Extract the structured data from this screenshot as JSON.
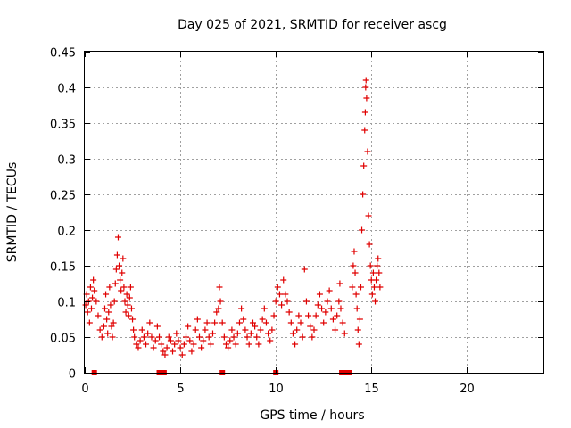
{
  "chart_data": {
    "type": "scatter",
    "title": "Day 025 of 2021, SRMTID for receiver ascg",
    "xlabel": "GPS time / hours",
    "ylabel": "SRMTID / TECUs",
    "xlim": [
      0,
      24
    ],
    "ylim": [
      0,
      0.45
    ],
    "xticks": [
      0,
      5,
      10,
      15,
      20
    ],
    "yticks": [
      0,
      0.05,
      0.1,
      0.15,
      0.2,
      0.25,
      0.3,
      0.35,
      0.4,
      0.45
    ],
    "xtick_labels": [
      "0",
      "5",
      "10",
      "15",
      "20"
    ],
    "ytick_labels": [
      "0",
      "0.05",
      "0.1",
      "0.15",
      "0.2",
      "0.25",
      "0.3",
      "0.35",
      "0.4",
      "0.45"
    ],
    "grid": true,
    "marker": "+",
    "series_color": "#e00000",
    "series": [
      {
        "name": "SRMTID",
        "points": [
          [
            0.05,
            0.095
          ],
          [
            0.1,
            0.11
          ],
          [
            0.15,
            0.085
          ],
          [
            0.2,
            0.1
          ],
          [
            0.25,
            0.07
          ],
          [
            0.3,
            0.12
          ],
          [
            0.35,
            0.09
          ],
          [
            0.4,
            0.105
          ],
          [
            0.45,
            0.13
          ],
          [
            0.5,
            0.115
          ],
          [
            0.6,
            0.1
          ],
          [
            0.7,
            0.08
          ],
          [
            0.8,
            0.06
          ],
          [
            0.9,
            0.05
          ],
          [
            1.0,
            0.065
          ],
          [
            1.05,
            0.09
          ],
          [
            1.1,
            0.11
          ],
          [
            1.15,
            0.075
          ],
          [
            1.2,
            0.055
          ],
          [
            1.25,
            0.085
          ],
          [
            1.3,
            0.12
          ],
          [
            1.35,
            0.095
          ],
          [
            1.4,
            0.065
          ],
          [
            1.45,
            0.05
          ],
          [
            1.5,
            0.07
          ],
          [
            1.55,
            0.1
          ],
          [
            1.6,
            0.125
          ],
          [
            1.65,
            0.145
          ],
          [
            1.7,
            0.165
          ],
          [
            1.75,
            0.19
          ],
          [
            1.8,
            0.15
          ],
          [
            1.85,
            0.13
          ],
          [
            1.9,
            0.115
          ],
          [
            1.95,
            0.14
          ],
          [
            2.0,
            0.16
          ],
          [
            2.05,
            0.12
          ],
          [
            2.1,
            0.1
          ],
          [
            2.15,
            0.085
          ],
          [
            2.2,
            0.11
          ],
          [
            2.25,
            0.095
          ],
          [
            2.3,
            0.08
          ],
          [
            2.35,
            0.105
          ],
          [
            2.4,
            0.12
          ],
          [
            2.45,
            0.09
          ],
          [
            2.5,
            0.075
          ],
          [
            2.55,
            0.06
          ],
          [
            2.6,
            0.05
          ],
          [
            2.7,
            0.04
          ],
          [
            2.8,
            0.035
          ],
          [
            2.9,
            0.045
          ],
          [
            3.0,
            0.06
          ],
          [
            3.1,
            0.05
          ],
          [
            3.2,
            0.04
          ],
          [
            3.3,
            0.055
          ],
          [
            3.4,
            0.07
          ],
          [
            3.5,
            0.05
          ],
          [
            3.6,
            0.035
          ],
          [
            3.7,
            0.045
          ],
          [
            3.8,
            0.065
          ],
          [
            3.9,
            0.05
          ],
          [
            4.0,
            0.04
          ],
          [
            4.1,
            0.03
          ],
          [
            4.2,
            0.025
          ],
          [
            4.3,
            0.035
          ],
          [
            4.4,
            0.05
          ],
          [
            4.5,
            0.045
          ],
          [
            4.6,
            0.03
          ],
          [
            4.7,
            0.04
          ],
          [
            4.8,
            0.055
          ],
          [
            4.9,
            0.045
          ],
          [
            5.0,
            0.035
          ],
          [
            5.1,
            0.025
          ],
          [
            5.2,
            0.04
          ],
          [
            5.3,
            0.05
          ],
          [
            5.4,
            0.065
          ],
          [
            5.5,
            0.045
          ],
          [
            5.6,
            0.03
          ],
          [
            5.7,
            0.04
          ],
          [
            5.8,
            0.06
          ],
          [
            5.9,
            0.075
          ],
          [
            6.0,
            0.05
          ],
          [
            6.1,
            0.035
          ],
          [
            6.2,
            0.045
          ],
          [
            6.3,
            0.06
          ],
          [
            6.4,
            0.07
          ],
          [
            6.5,
            0.05
          ],
          [
            6.6,
            0.04
          ],
          [
            6.7,
            0.055
          ],
          [
            6.8,
            0.07
          ],
          [
            6.9,
            0.085
          ],
          [
            7.0,
            0.09
          ],
          [
            7.05,
            0.12
          ],
          [
            7.1,
            0.1
          ],
          [
            7.2,
            0.07
          ],
          [
            7.3,
            0.05
          ],
          [
            7.4,
            0.04
          ],
          [
            7.5,
            0.035
          ],
          [
            7.6,
            0.045
          ],
          [
            7.7,
            0.06
          ],
          [
            7.8,
            0.05
          ],
          [
            7.9,
            0.04
          ],
          [
            8.0,
            0.055
          ],
          [
            8.1,
            0.07
          ],
          [
            8.2,
            0.09
          ],
          [
            8.3,
            0.075
          ],
          [
            8.4,
            0.06
          ],
          [
            8.5,
            0.05
          ],
          [
            8.6,
            0.04
          ],
          [
            8.7,
            0.055
          ],
          [
            8.8,
            0.07
          ],
          [
            8.9,
            0.065
          ],
          [
            9.0,
            0.05
          ],
          [
            9.1,
            0.04
          ],
          [
            9.2,
            0.06
          ],
          [
            9.3,
            0.075
          ],
          [
            9.4,
            0.09
          ],
          [
            9.5,
            0.07
          ],
          [
            9.6,
            0.055
          ],
          [
            9.7,
            0.045
          ],
          [
            9.8,
            0.06
          ],
          [
            9.9,
            0.08
          ],
          [
            10.0,
            0.1
          ],
          [
            10.1,
            0.12
          ],
          [
            10.2,
            0.11
          ],
          [
            10.3,
            0.095
          ],
          [
            10.4,
            0.13
          ],
          [
            10.5,
            0.11
          ],
          [
            10.6,
            0.1
          ],
          [
            10.7,
            0.085
          ],
          [
            10.8,
            0.07
          ],
          [
            10.9,
            0.055
          ],
          [
            11.0,
            0.04
          ],
          [
            11.1,
            0.06
          ],
          [
            11.2,
            0.08
          ],
          [
            11.3,
            0.07
          ],
          [
            11.4,
            0.05
          ],
          [
            11.5,
            0.145
          ],
          [
            11.6,
            0.1
          ],
          [
            11.7,
            0.08
          ],
          [
            11.8,
            0.065
          ],
          [
            11.9,
            0.05
          ],
          [
            12.0,
            0.06
          ],
          [
            12.1,
            0.08
          ],
          [
            12.2,
            0.095
          ],
          [
            12.3,
            0.11
          ],
          [
            12.4,
            0.09
          ],
          [
            12.5,
            0.07
          ],
          [
            12.6,
            0.085
          ],
          [
            12.7,
            0.1
          ],
          [
            12.8,
            0.115
          ],
          [
            12.9,
            0.09
          ],
          [
            13.0,
            0.075
          ],
          [
            13.1,
            0.06
          ],
          [
            13.2,
            0.08
          ],
          [
            13.3,
            0.1
          ],
          [
            13.35,
            0.125
          ],
          [
            13.4,
            0.09
          ],
          [
            13.5,
            0.07
          ],
          [
            13.6,
            0.055
          ],
          [
            14.0,
            0.12
          ],
          [
            14.05,
            0.15
          ],
          [
            14.1,
            0.17
          ],
          [
            14.15,
            0.14
          ],
          [
            14.2,
            0.11
          ],
          [
            14.25,
            0.09
          ],
          [
            14.3,
            0.06
          ],
          [
            14.35,
            0.04
          ],
          [
            14.4,
            0.075
          ],
          [
            14.45,
            0.12
          ],
          [
            14.5,
            0.2
          ],
          [
            14.55,
            0.25
          ],
          [
            14.6,
            0.29
          ],
          [
            14.65,
            0.34
          ],
          [
            14.68,
            0.365
          ],
          [
            14.7,
            0.4
          ],
          [
            14.72,
            0.41
          ],
          [
            14.75,
            0.385
          ],
          [
            14.8,
            0.31
          ],
          [
            14.85,
            0.22
          ],
          [
            14.9,
            0.18
          ],
          [
            14.95,
            0.15
          ],
          [
            15.0,
            0.13
          ],
          [
            15.05,
            0.11
          ],
          [
            15.1,
            0.14
          ],
          [
            15.15,
            0.12
          ],
          [
            15.2,
            0.1
          ],
          [
            15.25,
            0.13
          ],
          [
            15.3,
            0.15
          ],
          [
            15.35,
            0.16
          ],
          [
            15.4,
            0.14
          ],
          [
            15.45,
            0.12
          ]
        ]
      }
    ],
    "gap_markers_x": [
      0.5,
      3.9,
      4.05,
      4.15,
      7.2,
      10.0,
      13.45,
      13.55,
      13.65,
      13.75,
      13.85
    ]
  }
}
